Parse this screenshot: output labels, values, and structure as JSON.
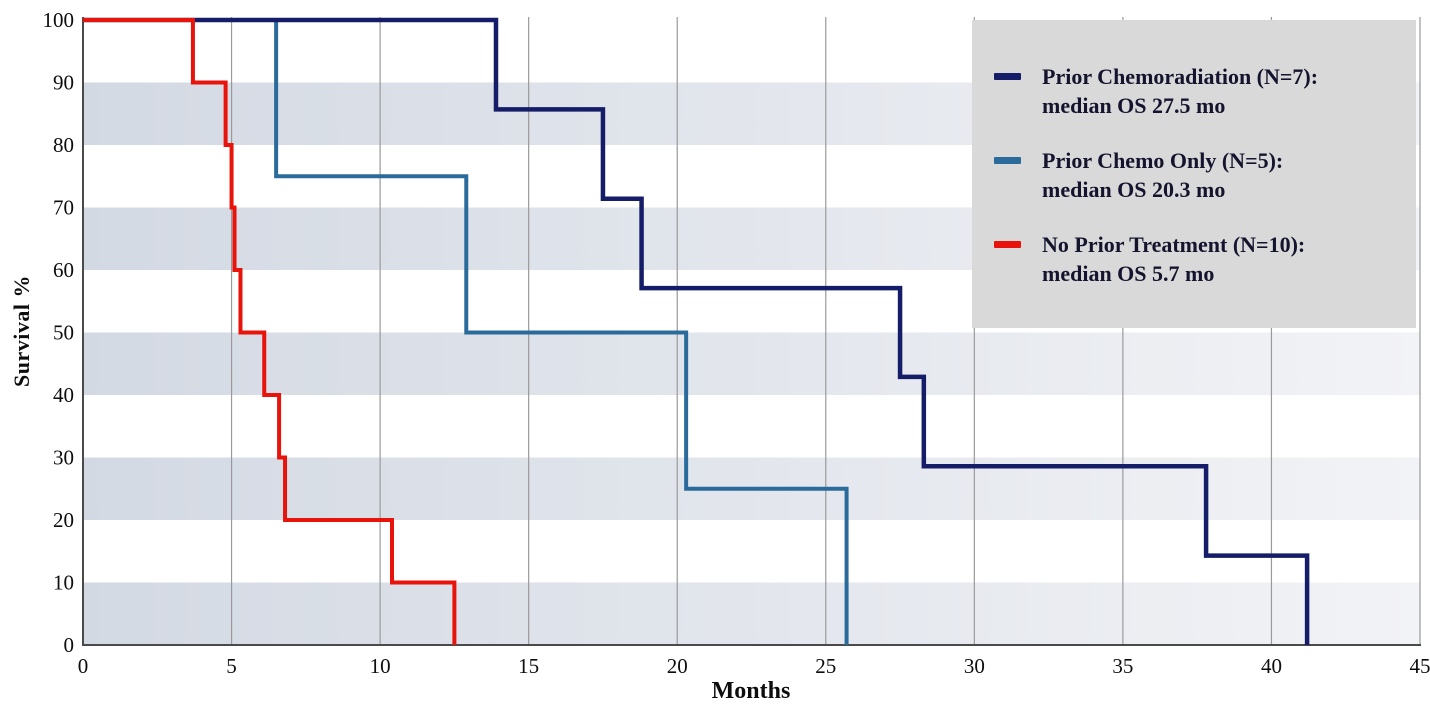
{
  "chart_data": {
    "type": "line",
    "subtype": "kaplan-meier-step",
    "title": "",
    "xlabel": "Months",
    "ylabel": "Survival %",
    "xlim": [
      0,
      45
    ],
    "ylim": [
      0,
      100
    ],
    "x_ticks": [
      0,
      5,
      10,
      15,
      20,
      25,
      30,
      35,
      40,
      45
    ],
    "y_ticks": [
      0,
      10,
      20,
      30,
      40,
      50,
      60,
      70,
      80,
      90,
      100
    ],
    "grid": "vertical gridlines every 5 months; alternating horizontal shaded bands",
    "band_rows": [
      [
        0,
        10
      ],
      [
        20,
        30
      ],
      [
        40,
        50
      ],
      [
        60,
        70
      ],
      [
        80,
        90
      ]
    ],
    "legend_position": "top-right",
    "series": [
      {
        "name": "Prior Chemo Only",
        "n": 5,
        "median_os_months": 20.3,
        "label_line1": "Prior Chemo Only (N=5):",
        "label_line2": "median OS 20.3 mo",
        "color": "#2b6b9c",
        "stroke_width": 4,
        "points": [
          [
            0,
            100
          ],
          [
            6.5,
            75
          ],
          [
            12.9,
            50
          ],
          [
            20.3,
            25
          ],
          [
            25.7,
            0
          ]
        ]
      },
      {
        "name": "Prior Chemoradiation",
        "n": 7,
        "median_os_months": 27.5,
        "label_line1": "Prior Chemoradiation (N=7):",
        "label_line2": "median OS 27.5 mo",
        "color": "#161d68",
        "stroke_width": 4.5,
        "points": [
          [
            0,
            100
          ],
          [
            13.9,
            85.7
          ],
          [
            17.5,
            71.4
          ],
          [
            18.8,
            57.1
          ],
          [
            27.5,
            42.9
          ],
          [
            28.3,
            28.6
          ],
          [
            37.8,
            14.3
          ],
          [
            41.2,
            0
          ]
        ]
      },
      {
        "name": "No Prior Treatment",
        "n": 10,
        "median_os_months": 5.7,
        "label_line1": "No Prior Treatment (N=10):",
        "label_line2": "median OS 5.7 mo",
        "color": "#e8140c",
        "stroke_width": 4,
        "points": [
          [
            0,
            100
          ],
          [
            3.7,
            90
          ],
          [
            4.8,
            80
          ],
          [
            5.0,
            70
          ],
          [
            5.1,
            60
          ],
          [
            5.3,
            50
          ],
          [
            6.1,
            40
          ],
          [
            6.6,
            30
          ],
          [
            6.8,
            20
          ],
          [
            10.4,
            10
          ],
          [
            12.5,
            0
          ]
        ]
      }
    ],
    "legend_order": [
      1,
      0,
      2
    ],
    "colors": {
      "band_left": "#d3d9e3",
      "band_right": "#f2f3f6",
      "gridline": "#9a9a9a",
      "axis_line": "#4a4a4a",
      "legend_bg": "#d9d9d9",
      "text": "#14142e"
    }
  }
}
